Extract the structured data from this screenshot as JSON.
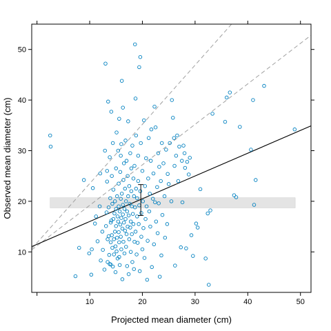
{
  "chart_data": {
    "type": "scatter",
    "xlabel": "Projected mean diameter (cm)",
    "ylabel": "Observed mean diameter (cm)",
    "xlim": [
      -1,
      52
    ],
    "ylim": [
      2,
      55
    ],
    "x_ticks": [
      10,
      20,
      30,
      40,
      50
    ],
    "y_ticks": [
      10,
      20,
      30,
      40,
      50
    ],
    "grid": false,
    "point_color": "#0080c0",
    "points": [
      [
        2.5,
        33.0
      ],
      [
        2.6,
        30.8
      ],
      [
        7.3,
        5.2
      ],
      [
        8.0,
        10.8
      ],
      [
        8.9,
        24.2
      ],
      [
        9.9,
        9.7
      ],
      [
        10.4,
        10.5
      ],
      [
        10.3,
        5.5
      ],
      [
        10.6,
        22.6
      ],
      [
        11.0,
        15.6
      ],
      [
        11.2,
        17.0
      ],
      [
        11.5,
        12.1
      ],
      [
        11.9,
        19.0
      ],
      [
        12.0,
        25.5
      ],
      [
        12.1,
        8.3
      ],
      [
        12.4,
        14.0
      ],
      [
        12.5,
        10.4
      ],
      [
        12.8,
        6.5
      ],
      [
        12.9,
        30.0
      ],
      [
        13.0,
        47.2
      ],
      [
        13.1,
        15.1
      ],
      [
        13.2,
        17.8
      ],
      [
        13.3,
        26.0
      ],
      [
        13.3,
        23.9
      ],
      [
        13.4,
        12.5
      ],
      [
        13.4,
        8.0
      ],
      [
        13.5,
        39.7
      ],
      [
        13.6,
        13.1
      ],
      [
        13.6,
        18.8
      ],
      [
        13.7,
        9.4
      ],
      [
        13.8,
        7.6
      ],
      [
        13.8,
        28.7
      ],
      [
        13.9,
        20.6
      ],
      [
        14.0,
        15.8
      ],
      [
        14.0,
        11.9
      ],
      [
        14.0,
        7.5
      ],
      [
        14.1,
        37.7
      ],
      [
        14.1,
        16.2
      ],
      [
        14.2,
        25.0
      ],
      [
        14.2,
        13.3
      ],
      [
        14.3,
        19.5
      ],
      [
        14.3,
        10.8
      ],
      [
        14.4,
        7.1
      ],
      [
        14.4,
        31.5
      ],
      [
        14.5,
        22.3
      ],
      [
        14.5,
        16.5
      ],
      [
        14.6,
        12.5
      ],
      [
        14.6,
        9.5
      ],
      [
        14.7,
        17.6
      ],
      [
        14.8,
        20.0
      ],
      [
        14.8,
        14.0
      ],
      [
        14.9,
        11.1
      ],
      [
        14.9,
        6.0
      ],
      [
        15.0,
        26.5
      ],
      [
        15.0,
        18.5
      ],
      [
        15.0,
        15.1
      ],
      [
        15.1,
        10.1
      ],
      [
        15.1,
        33.6
      ],
      [
        15.2,
        12.8
      ],
      [
        15.2,
        21.0
      ],
      [
        15.3,
        8.7
      ],
      [
        15.3,
        17.0
      ],
      [
        15.4,
        16.0
      ],
      [
        15.4,
        30.0
      ],
      [
        15.5,
        23.5
      ],
      [
        15.5,
        19.0
      ],
      [
        15.5,
        13.9
      ],
      [
        15.6,
        11.9
      ],
      [
        15.6,
        36.3
      ],
      [
        15.6,
        9.0
      ],
      [
        15.7,
        7.4
      ],
      [
        15.7,
        18.0
      ],
      [
        15.8,
        15.4
      ],
      [
        15.8,
        25.8
      ],
      [
        15.9,
        20.5
      ],
      [
        15.9,
        13.0
      ],
      [
        15.9,
        29.0
      ],
      [
        16.0,
        16.7
      ],
      [
        16.0,
        10.5
      ],
      [
        16.0,
        31.3
      ],
      [
        16.1,
        43.8
      ],
      [
        16.1,
        21.5
      ],
      [
        16.2,
        14.6
      ],
      [
        16.2,
        4.6
      ],
      [
        16.3,
        19.3
      ],
      [
        16.3,
        17.4
      ],
      [
        16.3,
        38.5
      ],
      [
        16.4,
        12.0
      ],
      [
        16.4,
        24.2
      ],
      [
        16.5,
        27.5
      ],
      [
        16.5,
        15.8
      ],
      [
        16.6,
        9.7
      ],
      [
        16.6,
        18.5
      ],
      [
        16.7,
        22.5
      ],
      [
        16.7,
        14.2
      ],
      [
        16.8,
        32.0
      ],
      [
        16.8,
        16.5
      ],
      [
        16.9,
        11.0
      ],
      [
        16.9,
        20.0
      ],
      [
        17.0,
        28.0
      ],
      [
        17.0,
        13.5
      ],
      [
        17.1,
        7.2
      ],
      [
        17.1,
        18.0
      ],
      [
        17.2,
        25.0
      ],
      [
        17.2,
        15.0
      ],
      [
        17.3,
        35.8
      ],
      [
        17.3,
        21.0
      ],
      [
        17.4,
        5.6
      ],
      [
        17.4,
        17.2
      ],
      [
        17.5,
        12.5
      ],
      [
        17.5,
        23.0
      ],
      [
        17.6,
        19.5
      ],
      [
        17.7,
        14.8
      ],
      [
        17.7,
        29.5
      ],
      [
        17.8,
        10.0
      ],
      [
        17.8,
        16.0
      ],
      [
        17.9,
        26.5
      ],
      [
        17.9,
        22.0
      ],
      [
        18.0,
        19.0
      ],
      [
        18.0,
        13.5
      ],
      [
        18.1,
        8.0
      ],
      [
        18.1,
        31.0
      ],
      [
        18.2,
        17.5
      ],
      [
        18.3,
        24.5
      ],
      [
        18.3,
        15.5
      ],
      [
        18.4,
        21.0
      ],
      [
        18.4,
        6.6
      ],
      [
        18.5,
        12.0
      ],
      [
        18.5,
        27.0
      ],
      [
        18.6,
        51.0
      ],
      [
        18.6,
        18.8
      ],
      [
        18.7,
        40.3
      ],
      [
        18.7,
        14.0
      ],
      [
        18.8,
        33.0
      ],
      [
        18.8,
        22.5
      ],
      [
        18.9,
        9.5
      ],
      [
        19.0,
        17.0
      ],
      [
        19.0,
        20.6
      ],
      [
        19.1,
        11.8
      ],
      [
        19.2,
        24.0
      ],
      [
        19.2,
        29.0
      ],
      [
        19.3,
        15.5
      ],
      [
        19.4,
        46.5
      ],
      [
        19.4,
        19.2
      ],
      [
        19.5,
        6.2
      ],
      [
        19.6,
        48.5
      ],
      [
        19.6,
        22.0
      ],
      [
        19.7,
        31.5
      ],
      [
        19.8,
        13.0
      ],
      [
        19.8,
        17.7
      ],
      [
        20.0,
        26.0
      ],
      [
        20.0,
        10.5
      ],
      [
        20.1,
        20.0
      ],
      [
        20.2,
        14.7
      ],
      [
        20.3,
        36.0
      ],
      [
        20.4,
        8.8
      ],
      [
        20.5,
        23.0
      ],
      [
        20.6,
        16.5
      ],
      [
        20.7,
        28.5
      ],
      [
        20.8,
        19.0
      ],
      [
        20.9,
        4.5
      ],
      [
        21.0,
        12.2
      ],
      [
        21.1,
        24.5
      ],
      [
        21.2,
        32.5
      ],
      [
        21.3,
        18.0
      ],
      [
        21.4,
        21.5
      ],
      [
        21.5,
        15.0
      ],
      [
        21.6,
        28.0
      ],
      [
        21.7,
        34.2
      ],
      [
        21.8,
        7.0
      ],
      [
        22.0,
        20.5
      ],
      [
        22.1,
        25.5
      ],
      [
        22.2,
        11.5
      ],
      [
        22.3,
        38.7
      ],
      [
        22.4,
        19.8
      ],
      [
        22.5,
        34.6
      ],
      [
        22.6,
        16.0
      ],
      [
        22.8,
        22.8
      ],
      [
        22.9,
        13.7
      ],
      [
        23.0,
        29.5
      ],
      [
        23.1,
        19.6
      ],
      [
        23.2,
        26.8
      ],
      [
        23.3,
        5.1
      ],
      [
        23.5,
        24.0
      ],
      [
        23.6,
        9.3
      ],
      [
        23.7,
        31.5
      ],
      [
        23.8,
        17.3
      ],
      [
        24.0,
        27.5
      ],
      [
        24.2,
        21.0
      ],
      [
        24.3,
        12.8
      ],
      [
        24.5,
        30.2
      ],
      [
        24.7,
        15.5
      ],
      [
        24.8,
        25.4
      ],
      [
        25.0,
        23.4
      ],
      [
        25.2,
        31.5
      ],
      [
        25.5,
        20.0
      ],
      [
        25.6,
        40.0
      ],
      [
        25.8,
        36.5
      ],
      [
        26.0,
        32.5
      ],
      [
        26.1,
        27.0
      ],
      [
        26.2,
        7.3
      ],
      [
        26.4,
        29.0
      ],
      [
        26.6,
        33.0
      ],
      [
        26.8,
        24.0
      ],
      [
        27.0,
        30.8
      ],
      [
        27.3,
        10.9
      ],
      [
        27.5,
        28.0
      ],
      [
        27.6,
        19.8
      ],
      [
        27.8,
        31.0
      ],
      [
        28.0,
        29.5
      ],
      [
        28.1,
        26.6
      ],
      [
        28.3,
        10.7
      ],
      [
        28.5,
        27.8
      ],
      [
        28.8,
        25.3
      ],
      [
        29.0,
        28.6
      ],
      [
        29.3,
        13.3
      ],
      [
        29.6,
        9.2
      ],
      [
        30.2,
        15.6
      ],
      [
        30.5,
        14.8
      ],
      [
        31.0,
        22.4
      ],
      [
        32.0,
        8.7
      ],
      [
        32.4,
        17.6
      ],
      [
        32.6,
        3.5
      ],
      [
        32.9,
        18.2
      ],
      [
        33.3,
        37.3
      ],
      [
        35.7,
        35.7
      ],
      [
        36.0,
        40.5
      ],
      [
        36.6,
        41.5
      ],
      [
        37.4,
        21.2
      ],
      [
        37.8,
        20.8
      ],
      [
        38.5,
        34.7
      ],
      [
        40.6,
        30.2
      ],
      [
        41.0,
        40.0
      ],
      [
        41.2,
        19.3
      ],
      [
        41.5,
        24.2
      ],
      [
        43.1,
        42.8
      ],
      [
        48.9,
        34.2
      ]
    ],
    "fit_line": {
      "intercept": 11.5,
      "slope": 0.45,
      "color": "#000000"
    },
    "reference_lines": [
      {
        "intercept": 11.8,
        "slope": 1.17,
        "color": "#a0a0a0",
        "style": "dashed"
      },
      {
        "intercept": 11.2,
        "slope": 0.8,
        "color": "#a0a0a0",
        "style": "dashed"
      }
    ],
    "mean_band": {
      "x_from": 2.5,
      "x_to": 49.0,
      "y_from": 18.7,
      "y_to": 20.7,
      "color": "#e4e4e4"
    },
    "error_bar": {
      "x": 19.7,
      "y_low": 17.2,
      "y_high": 23.3
    }
  }
}
